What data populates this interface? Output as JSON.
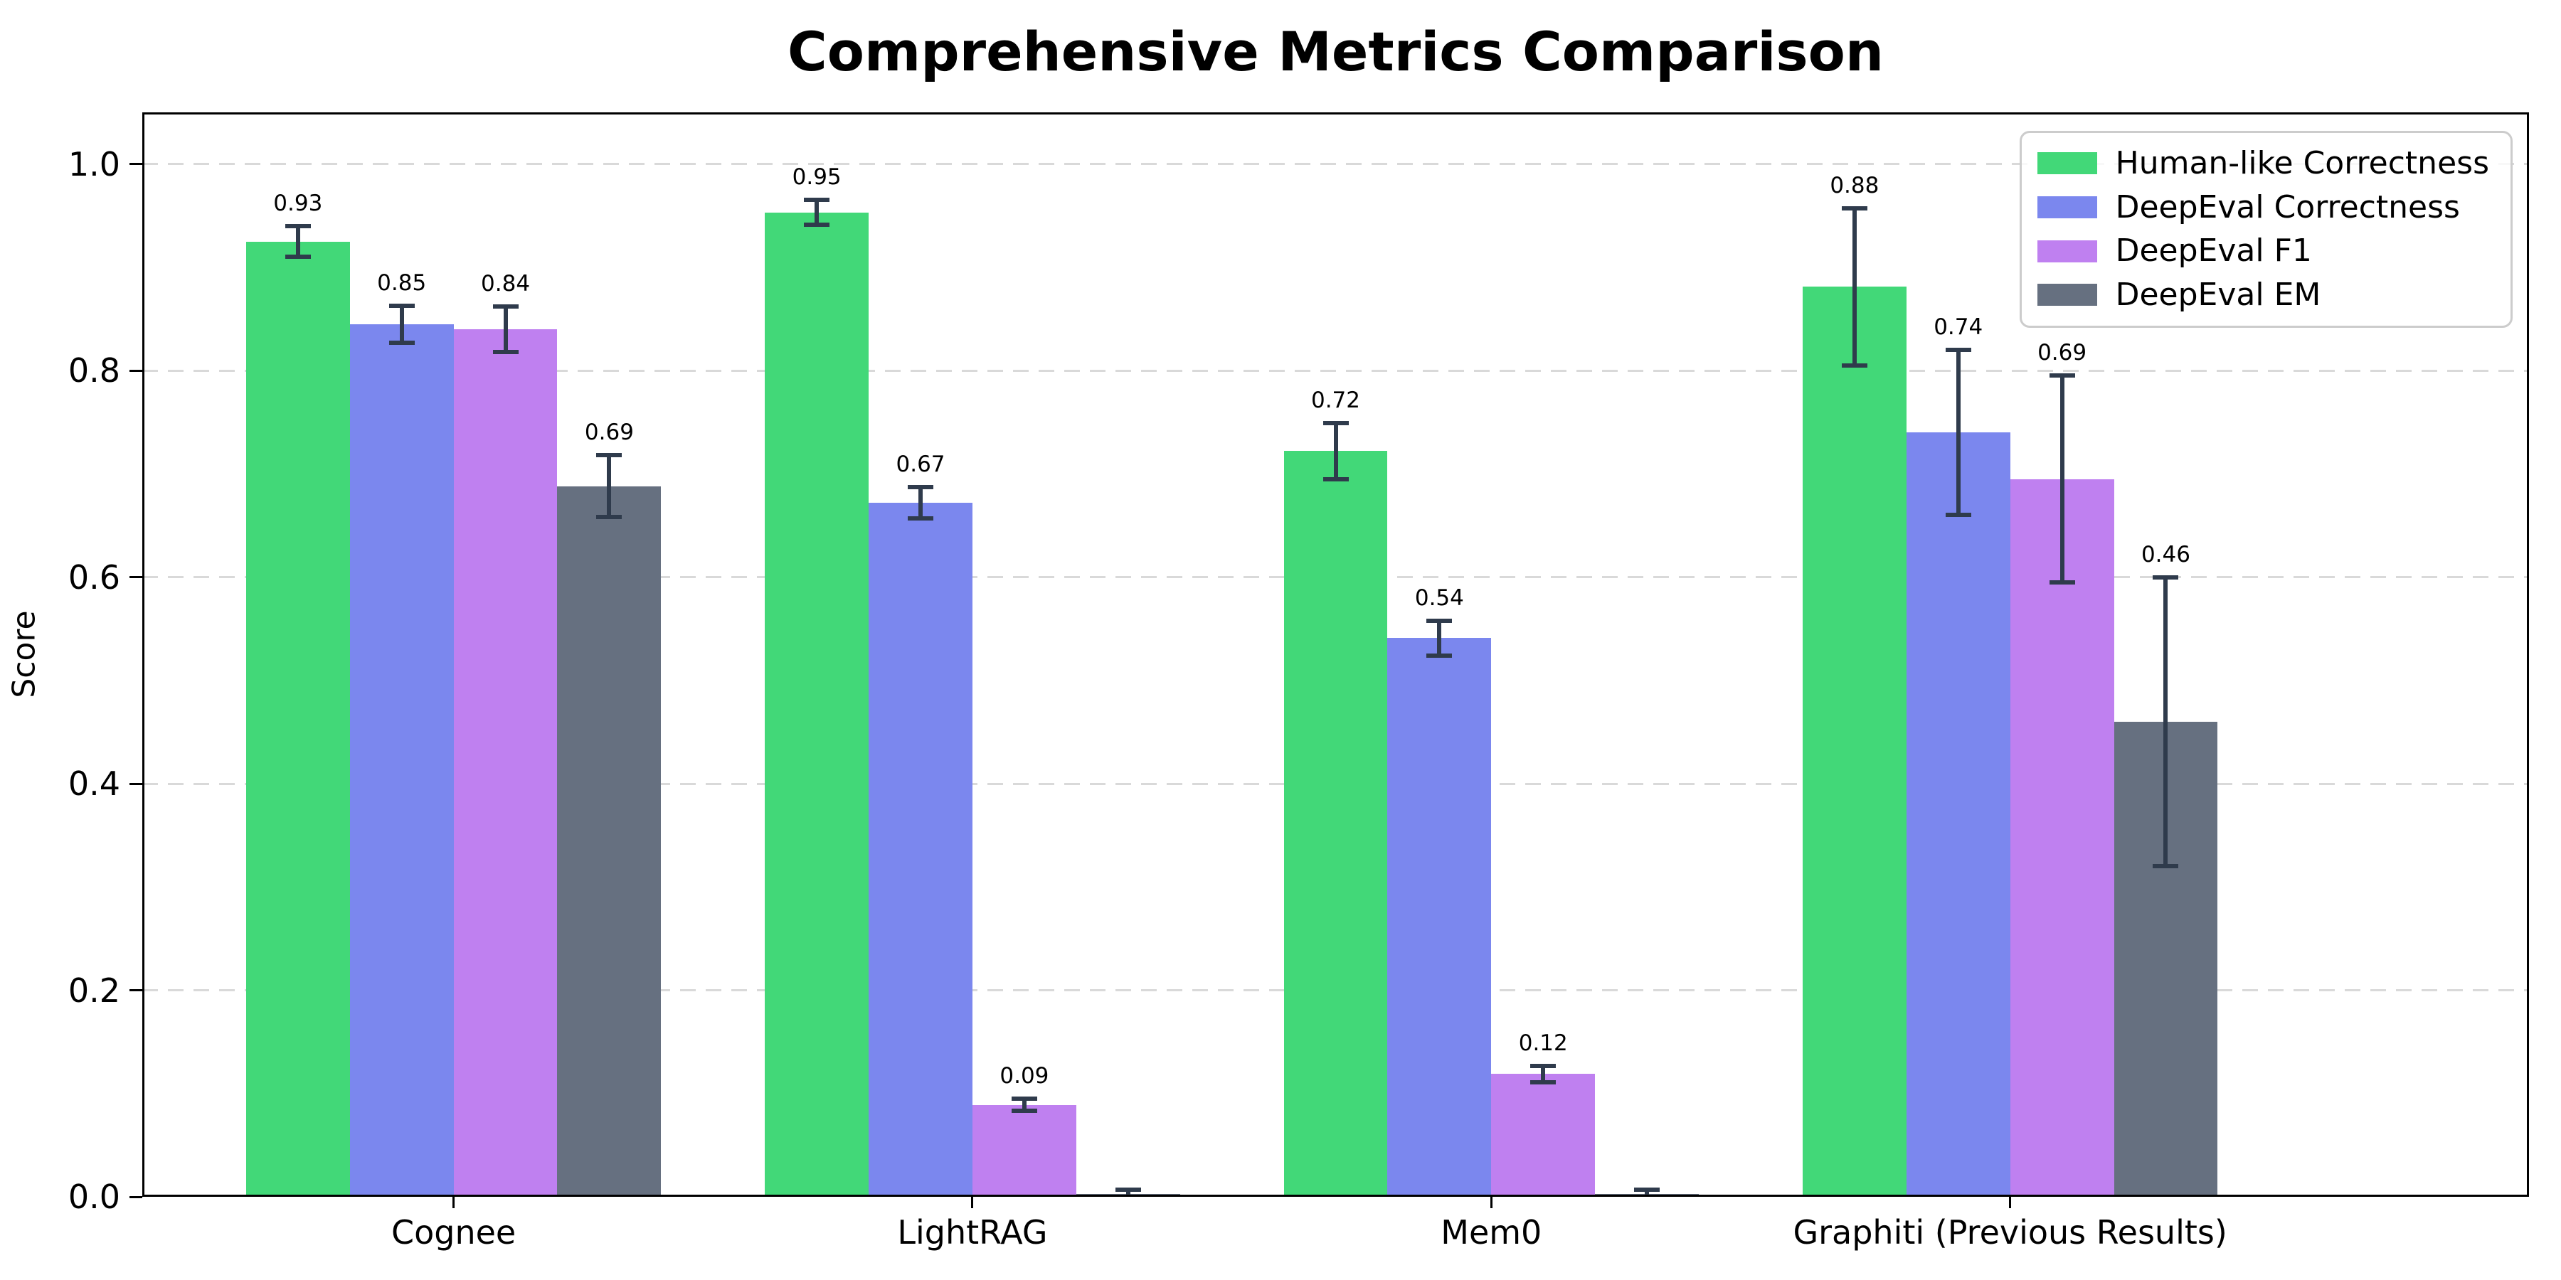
{
  "title": "Comprehensive Metrics Comparison",
  "ylabel": "Score",
  "chart_data": {
    "type": "bar",
    "title": "Comprehensive Metrics Comparison",
    "xlabel": "",
    "ylabel": "Score",
    "ylim": [
      0,
      1.05
    ],
    "yticks": [
      {
        "value": 0.0,
        "label": "0.0"
      },
      {
        "value": 0.2,
        "label": "0.2"
      },
      {
        "value": 0.4,
        "label": "0.4"
      },
      {
        "value": 0.6,
        "label": "0.6"
      },
      {
        "value": 0.8,
        "label": "0.8"
      },
      {
        "value": 1.0,
        "label": "1.0"
      }
    ],
    "grid": "horizontal-dashed",
    "grid_color": "#d9d9d9",
    "legend_position": "upper-right",
    "error_bar_color": "#2f3b4c",
    "categories": [
      "Cognee",
      "LightRAG",
      "Mem0",
      "Graphiti (Previous Results)"
    ],
    "series": [
      {
        "name": "Human-like Correctness",
        "color": "#42d878",
        "values": [
          0.925,
          0.953,
          0.722,
          0.881
        ],
        "errors": [
          0.015,
          0.012,
          0.027,
          0.076
        ],
        "labels": [
          "0.93",
          "0.95",
          "0.72",
          "0.88"
        ]
      },
      {
        "name": "DeepEval Correctness",
        "color": "#7b87ee",
        "values": [
          0.845,
          0.672,
          0.541,
          0.74
        ],
        "errors": [
          0.018,
          0.015,
          0.017,
          0.08
        ],
        "labels": [
          "0.85",
          "0.67",
          "0.54",
          "0.74"
        ]
      },
      {
        "name": "DeepEval F1",
        "color": "#bf80f0",
        "values": [
          0.84,
          0.089,
          0.119,
          0.695
        ],
        "errors": [
          0.022,
          0.006,
          0.008,
          0.1
        ],
        "labels": [
          "0.84",
          "0.09",
          "0.12",
          "0.69"
        ]
      },
      {
        "name": "DeepEval EM",
        "color": "#667080",
        "values": [
          0.688,
          0.003,
          0.003,
          0.46
        ],
        "errors": [
          0.03,
          0.004,
          0.004,
          0.14
        ],
        "labels": [
          "0.69",
          "",
          "",
          "0.46"
        ]
      }
    ]
  }
}
